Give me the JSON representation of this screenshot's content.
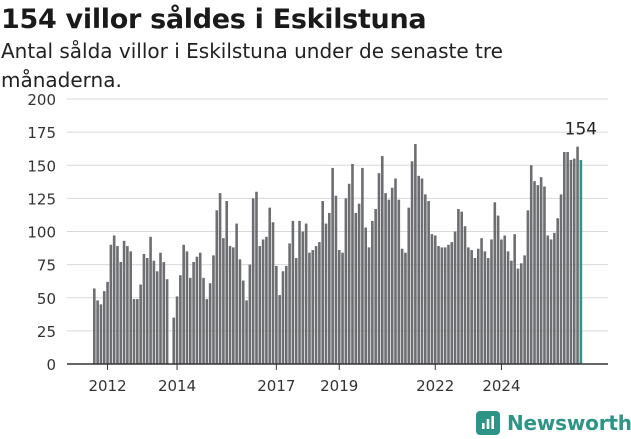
{
  "chart_data": {
    "type": "bar",
    "title": "154 villor såldes i Eskilstuna",
    "subtitle": "Antal sålda villor i Eskilstuna under de senaste tre månaderna.",
    "xlabel": "",
    "ylabel": "",
    "ylim": [
      0,
      200
    ],
    "yticks": [
      0,
      25,
      50,
      75,
      100,
      125,
      150,
      175,
      200
    ],
    "xticks": [
      "2012",
      "2014",
      "2017",
      "2019",
      "2022",
      "2024"
    ],
    "xtick_positions": [
      4,
      25,
      55,
      74,
      103,
      123
    ],
    "grid": true,
    "legend": "none",
    "last_value_label": "154",
    "colors": {
      "bar": "#6d6e71",
      "highlight": "#2e9488",
      "grid": "#d8d8d8",
      "axis": "#333333"
    },
    "series": [
      {
        "values": [
          57,
          48,
          45,
          55,
          62,
          90,
          97,
          89,
          77,
          93,
          89,
          85,
          49,
          49,
          60,
          83,
          80,
          96,
          78,
          70,
          84,
          77,
          64,
          0,
          35,
          51,
          67,
          90,
          85,
          65,
          77,
          81,
          84,
          65,
          49,
          61,
          82,
          116,
          129,
          95,
          123,
          89,
          88,
          106,
          79,
          63,
          48,
          75,
          125,
          130,
          89,
          94,
          96,
          118,
          107,
          74,
          52,
          70,
          74,
          91,
          108,
          80,
          108,
          100,
          106,
          84,
          86,
          89,
          92,
          123,
          106,
          114,
          148,
          127,
          86,
          84,
          125,
          136,
          151,
          114,
          121,
          148,
          103,
          88,
          108,
          117,
          144,
          157,
          129,
          124,
          133,
          140,
          124,
          87,
          84,
          118,
          153,
          166,
          142,
          140,
          128,
          123,
          98,
          97,
          89,
          88,
          88,
          90,
          92,
          100,
          117,
          115,
          104,
          88,
          86,
          80,
          87,
          95,
          85,
          80,
          94,
          122,
          112,
          94,
          97,
          85,
          78,
          98,
          72,
          76,
          82,
          116,
          150,
          138,
          135,
          141,
          134,
          97,
          94,
          99,
          110,
          128,
          160,
          160,
          154,
          155,
          164,
          154
        ]
      }
    ]
  },
  "header": {
    "title": "154 villor såldes i Eskilstuna",
    "subtitle": "Antal sålda villor i Eskilstuna under de senaste tre månaderna."
  },
  "footer": {
    "brand": "Newsworthy",
    "brand_icon": "bar-chart-logo-icon"
  }
}
